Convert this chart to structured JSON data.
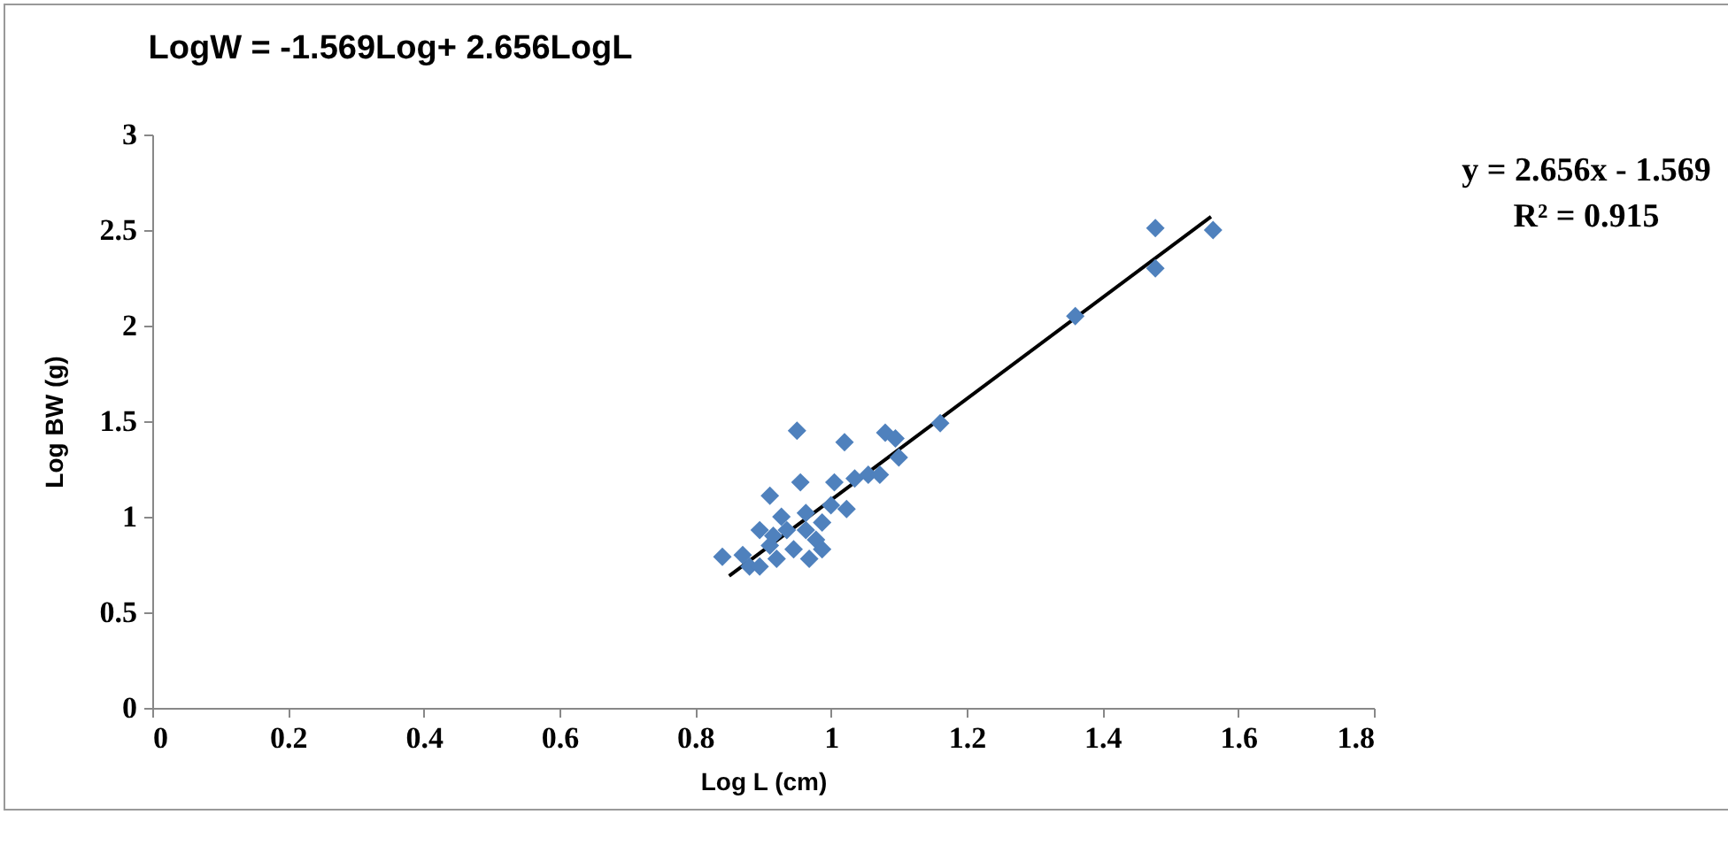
{
  "chart_data": {
    "type": "scatter",
    "title": "LogW = -1.569Log+ 2.656LogL",
    "xlabel": "Log L (cm)",
    "ylabel": "Log BW (g)",
    "annotations": [
      "y = 2.656x - 1.569",
      "R² = 0.915"
    ],
    "xlim": [
      0,
      1.8
    ],
    "ylim": [
      0,
      3
    ],
    "xticks": [
      0,
      {
        "value": 0.2,
        "label": "0.2"
      },
      {
        "value": 0.4,
        "label": "0.4"
      },
      {
        "value": 0.6,
        "label": "0.6"
      },
      {
        "value": 0.8,
        "label": "0.8"
      },
      1,
      {
        "value": 1.2,
        "label": "1.2"
      },
      {
        "value": 1.4,
        "label": "1.4"
      },
      {
        "value": 1.6,
        "label": "1.6"
      },
      {
        "value": 1.8,
        "label": "1.8"
      }
    ],
    "yticks": [
      0,
      {
        "value": 0.5,
        "label": "0.5"
      },
      1,
      {
        "value": 1.5,
        "label": "1.5"
      },
      2,
      {
        "value": 2.5,
        "label": "2.5"
      },
      3
    ],
    "series": [
      {
        "marker": "diamond",
        "color": "#4f81bd",
        "x": [
          0.84,
          0.87,
          0.88,
          0.895,
          0.895,
          0.91,
          0.91,
          0.915,
          0.92,
          0.927,
          0.935,
          0.945,
          0.95,
          0.955,
          0.963,
          0.963,
          0.968,
          0.978,
          0.987,
          0.987,
          1.0,
          1.005,
          1.02,
          1.023,
          1.035,
          1.055,
          1.072,
          1.08,
          1.095,
          1.1,
          1.161,
          1.36,
          1.478,
          1.478,
          1.563
        ],
        "values": [
          0.79,
          0.8,
          0.74,
          0.74,
          0.93,
          0.85,
          1.11,
          0.9,
          0.78,
          1.0,
          0.93,
          0.83,
          1.45,
          1.18,
          1.02,
          0.93,
          0.78,
          0.88,
          0.97,
          0.83,
          1.06,
          1.18,
          1.39,
          1.04,
          1.2,
          1.22,
          1.22,
          1.44,
          1.41,
          1.31,
          1.49,
          2.05,
          2.51,
          2.3,
          2.5
        ]
      },
      {
        "type": "line",
        "color": "#000000",
        "x": [
          0.85,
          1.56
        ],
        "values": [
          0.69,
          2.57
        ]
      }
    ]
  }
}
